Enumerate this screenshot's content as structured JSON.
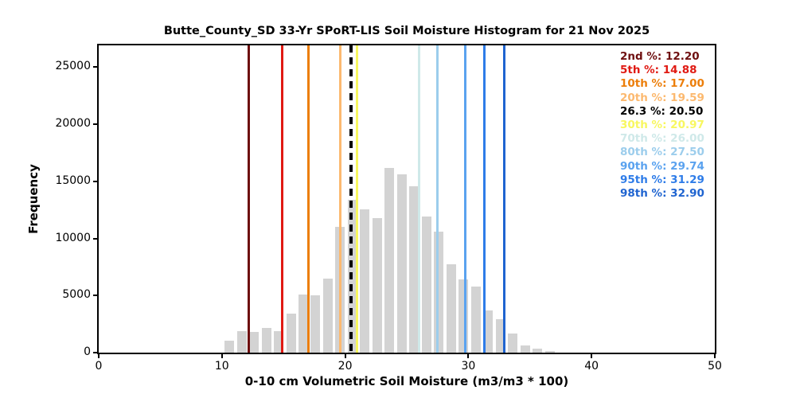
{
  "chart_data": {
    "type": "bar",
    "title": "Butte_County_SD 33-Yr SPoRT-LIS Soil Moisture Histogram for 21 Nov 2025",
    "xlabel": "0-10 cm Volumetric Soil Moisture (m3/m3 * 100)",
    "ylabel": "Frequency",
    "xlim": [
      0,
      50
    ],
    "ylim": [
      0,
      26900
    ],
    "xticks": [
      0,
      10,
      20,
      30,
      40,
      50
    ],
    "yticks": [
      0,
      5000,
      10000,
      15000,
      20000,
      25000
    ],
    "grid": false,
    "legend_position": "top-right-inside",
    "bar_color": "#d3d3d3",
    "bin_width": 1.0,
    "bar_display_width": 0.78,
    "bin_centers": [
      10.6,
      11.6,
      12.6,
      13.6,
      14.6,
      15.6,
      16.6,
      17.6,
      18.6,
      19.6,
      20.6,
      21.6,
      22.6,
      23.6,
      24.6,
      25.6,
      26.6,
      27.6,
      28.6,
      29.6,
      30.6,
      31.6,
      32.6,
      33.6,
      34.6,
      35.6,
      36.6
    ],
    "values": [
      1050,
      1900,
      1800,
      2150,
      1900,
      3400,
      5100,
      5050,
      6500,
      11000,
      13350,
      12550,
      11750,
      16150,
      15600,
      14550,
      11900,
      10600,
      7750,
      6400,
      5800,
      3700,
      2950,
      1670,
      610,
      330,
      150
    ],
    "legend_separator": ": ",
    "percentile_lines": [
      {
        "label": "2nd %",
        "value": 12.2,
        "value_text": "12.20",
        "color": "#6e0f10",
        "style": "solid"
      },
      {
        "label": "5th %",
        "value": 14.88,
        "value_text": "14.88",
        "color": "#e01a13",
        "style": "solid"
      },
      {
        "label": "10th %",
        "value": 17.0,
        "value_text": "17.00",
        "color": "#ec7e0a",
        "style": "solid"
      },
      {
        "label": "20th %",
        "value": 19.59,
        "value_text": "19.59",
        "color": "#fcb96f",
        "style": "solid"
      },
      {
        "label": "26.3 %",
        "value": 20.5,
        "value_text": "20.50",
        "color": "#000000",
        "style": "dashed"
      },
      {
        "label": "30th %",
        "value": 20.97,
        "value_text": "20.97",
        "color": "#f8f75f",
        "style": "solid"
      },
      {
        "label": "70th %",
        "value": 26.0,
        "value_text": "26.00",
        "color": "#cfe9e9",
        "style": "solid"
      },
      {
        "label": "80th %",
        "value": 27.5,
        "value_text": "27.50",
        "color": "#9ccdec",
        "style": "solid"
      },
      {
        "label": "90th %",
        "value": 29.74,
        "value_text": "29.74",
        "color": "#5aa2ef",
        "style": "solid"
      },
      {
        "label": "95th %",
        "value": 31.29,
        "value_text": "31.29",
        "color": "#2e7ce8",
        "style": "solid"
      },
      {
        "label": "98th %",
        "value": 32.9,
        "value_text": "32.90",
        "color": "#1f64d0",
        "style": "solid"
      }
    ]
  }
}
